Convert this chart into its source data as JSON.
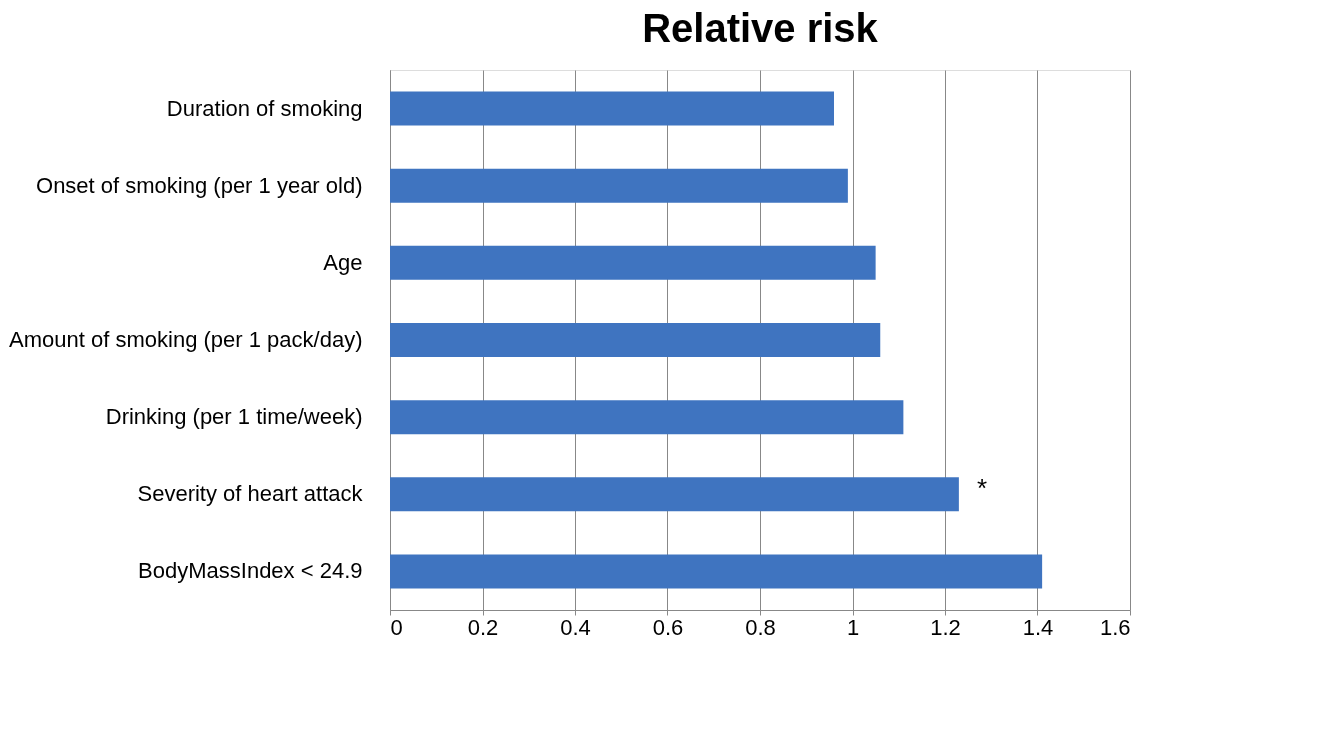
{
  "chart_data": {
    "type": "bar",
    "orientation": "horizontal",
    "title": "Relative risk",
    "categories": [
      "Duration of smoking",
      "Onset of smoking (per 1 year old)",
      "Age",
      "Amount of smoking (per 1 pack/day)",
      "Drinking (per 1 time/week)",
      "Severity of heart attack",
      "BodyMassIndex < 24.9"
    ],
    "values": [
      0.96,
      0.99,
      1.05,
      1.06,
      1.11,
      1.23,
      1.41
    ],
    "color": "#3f74c0",
    "xlim": [
      0,
      1.6
    ],
    "xticks": [
      0,
      0.2,
      0.4,
      0.6,
      0.8,
      1,
      1.2,
      1.4,
      1.6
    ],
    "grid": "x",
    "annotations": [
      "*"
    ]
  }
}
